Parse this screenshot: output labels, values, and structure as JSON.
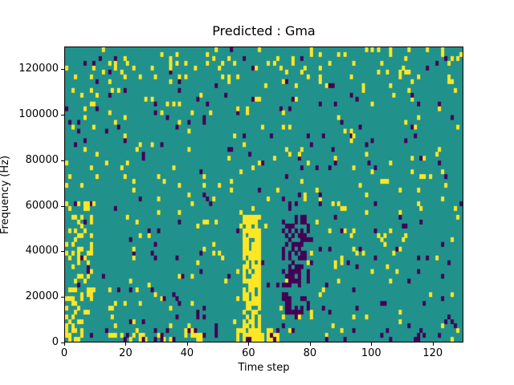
{
  "figure": {
    "background": "#ffffff",
    "spine_color": "#000000"
  },
  "chart_data": {
    "type": "heatmap",
    "title": "Predicted : Gma",
    "xlabel": "Time step",
    "ylabel": "Frequency (Hz)",
    "xlim": [
      0,
      130
    ],
    "ylim": [
      0,
      130000
    ],
    "xticks": [
      0,
      20,
      40,
      60,
      80,
      100,
      120
    ],
    "yticks": [
      0,
      20000,
      40000,
      60000,
      80000,
      100000,
      120000
    ],
    "grid": {
      "cols": 130,
      "rows": 65
    },
    "colors": {
      "mid": "#21918c",
      "high": "#fde725",
      "low": "#440154"
    },
    "noise": {
      "seed": 1337,
      "high_density": 0.035,
      "low_density": 0.022
    },
    "features": [
      {
        "name": "dense-yellow-band",
        "x": [
          58,
          64
        ],
        "freq": [
          0,
          56000
        ],
        "value": "high",
        "density": 0.7
      },
      {
        "name": "purple-cluster",
        "x": [
          71,
          80
        ],
        "freq": [
          12000,
          56000
        ],
        "value": "low",
        "density": 0.45
      },
      {
        "name": "left-edge-yellow",
        "x": [
          0,
          9
        ],
        "freq": [
          0,
          62000
        ],
        "value": "high",
        "density": 0.28
      },
      {
        "name": "bottom-left-strip",
        "x": [
          14,
          34
        ],
        "freq": [
          0,
          4000
        ],
        "value": "high",
        "density": 0.45
      },
      {
        "name": "bottom-mid-strip",
        "x": [
          38,
          45
        ],
        "freq": [
          0,
          4000
        ],
        "value": "high",
        "density": 0.4
      },
      {
        "name": "bottom-band-yellow",
        "x": [
          55,
          70
        ],
        "freq": [
          0,
          5000
        ],
        "value": "high",
        "density": 0.55
      },
      {
        "name": "top-band-speckle",
        "x": [
          0,
          130
        ],
        "freq": [
          116000,
          130000
        ],
        "value": "high",
        "density": 0.06
      },
      {
        "name": "purple-bottom-speckle",
        "x": [
          10,
          130
        ],
        "freq": [
          0,
          6000
        ],
        "value": "low",
        "density": 0.08
      }
    ]
  }
}
